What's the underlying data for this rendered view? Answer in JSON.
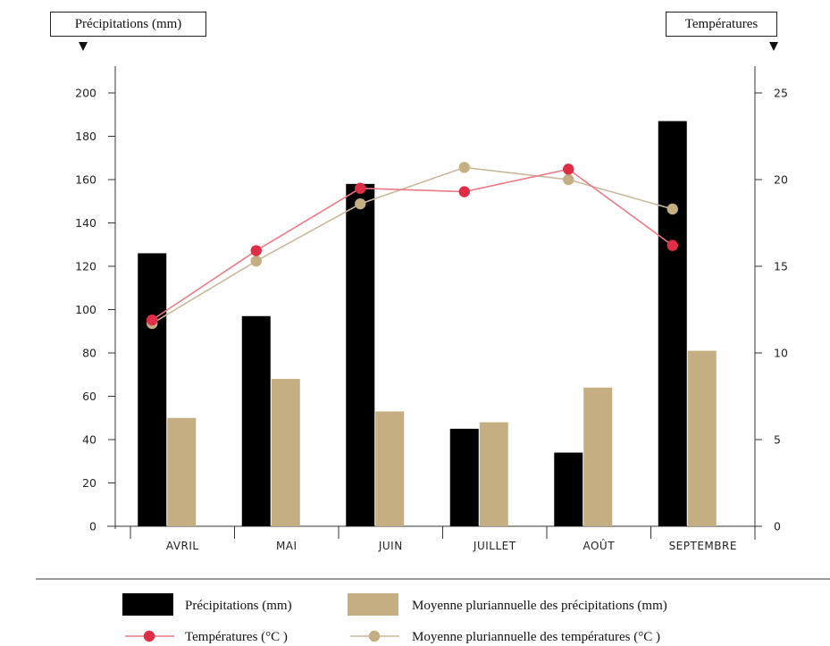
{
  "chart_data": {
    "type": "bar",
    "categories": [
      "AVRIL",
      "MAI",
      "JUIN",
      "JUILLET",
      "AOÛT",
      "SEPTEMBRE"
    ],
    "left_axis_label": "Précipitations (mm)",
    "right_axis_label": "Températures",
    "y_left": {
      "min": 0,
      "max": 200,
      "ticks": [
        0,
        20,
        40,
        60,
        80,
        100,
        120,
        140,
        160,
        180,
        200
      ]
    },
    "y_right": {
      "min": 0,
      "max": 25,
      "ticks": [
        0,
        5,
        10,
        15,
        20,
        25
      ]
    },
    "series": [
      {
        "name": "Précipitations (mm)",
        "kind": "bar",
        "axis": "left",
        "color": "#000000",
        "values": [
          126,
          97,
          158,
          45,
          34,
          187
        ]
      },
      {
        "name": "Moyenne pluriannuelle des précipitations (mm)",
        "kind": "bar",
        "axis": "left",
        "color": "#c4ae82",
        "values": [
          50,
          68,
          53,
          48,
          64,
          81
        ]
      },
      {
        "name": "Températures (°C )",
        "kind": "line",
        "axis": "right",
        "color": "#e02d46",
        "line_color": "#ec7a86",
        "values": [
          11.9,
          15.9,
          19.5,
          19.3,
          20.6,
          16.2
        ]
      },
      {
        "name": "Moyenne pluriannuelle des températures (°C )",
        "kind": "line",
        "axis": "right",
        "color": "#c4ae82",
        "line_color": "#cbb898",
        "values": [
          11.7,
          15.3,
          18.6,
          20.7,
          20.0,
          18.3
        ]
      }
    ],
    "legend_position": "bottom"
  }
}
